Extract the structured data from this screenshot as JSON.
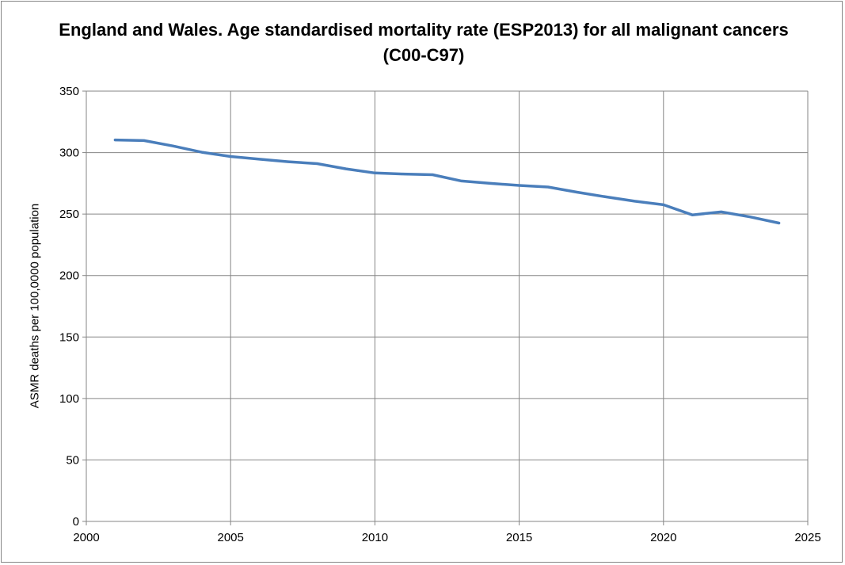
{
  "chart_data": {
    "type": "line",
    "title": "England and Wales. Age standardised mortality rate (ESP2013) for all malignant cancers (C00-C97)",
    "xlabel": "",
    "ylabel": "ASMR deaths per 100,0000 population",
    "xlim": [
      2000,
      2025
    ],
    "ylim": [
      0,
      350
    ],
    "x_ticks": [
      2000,
      2005,
      2010,
      2015,
      2020,
      2025
    ],
    "y_ticks": [
      0,
      50,
      100,
      150,
      200,
      250,
      300,
      350
    ],
    "grid": true,
    "legend": "none",
    "series": [
      {
        "name": "ASMR",
        "color": "#4A7EBB",
        "x": [
          2001,
          2002,
          2003,
          2004,
          2005,
          2006,
          2007,
          2008,
          2009,
          2010,
          2011,
          2012,
          2013,
          2014,
          2015,
          2016,
          2017,
          2018,
          2019,
          2020,
          2021,
          2022,
          2023,
          2024
        ],
        "values": [
          310.3,
          309.8,
          305.4,
          300.3,
          296.8,
          294.6,
          292.6,
          291.0,
          286.8,
          283.4,
          282.6,
          282.0,
          276.9,
          275.0,
          273.3,
          272.0,
          267.8,
          264.0,
          260.5,
          257.6,
          249.3,
          251.8,
          247.7,
          242.7
        ]
      }
    ]
  }
}
